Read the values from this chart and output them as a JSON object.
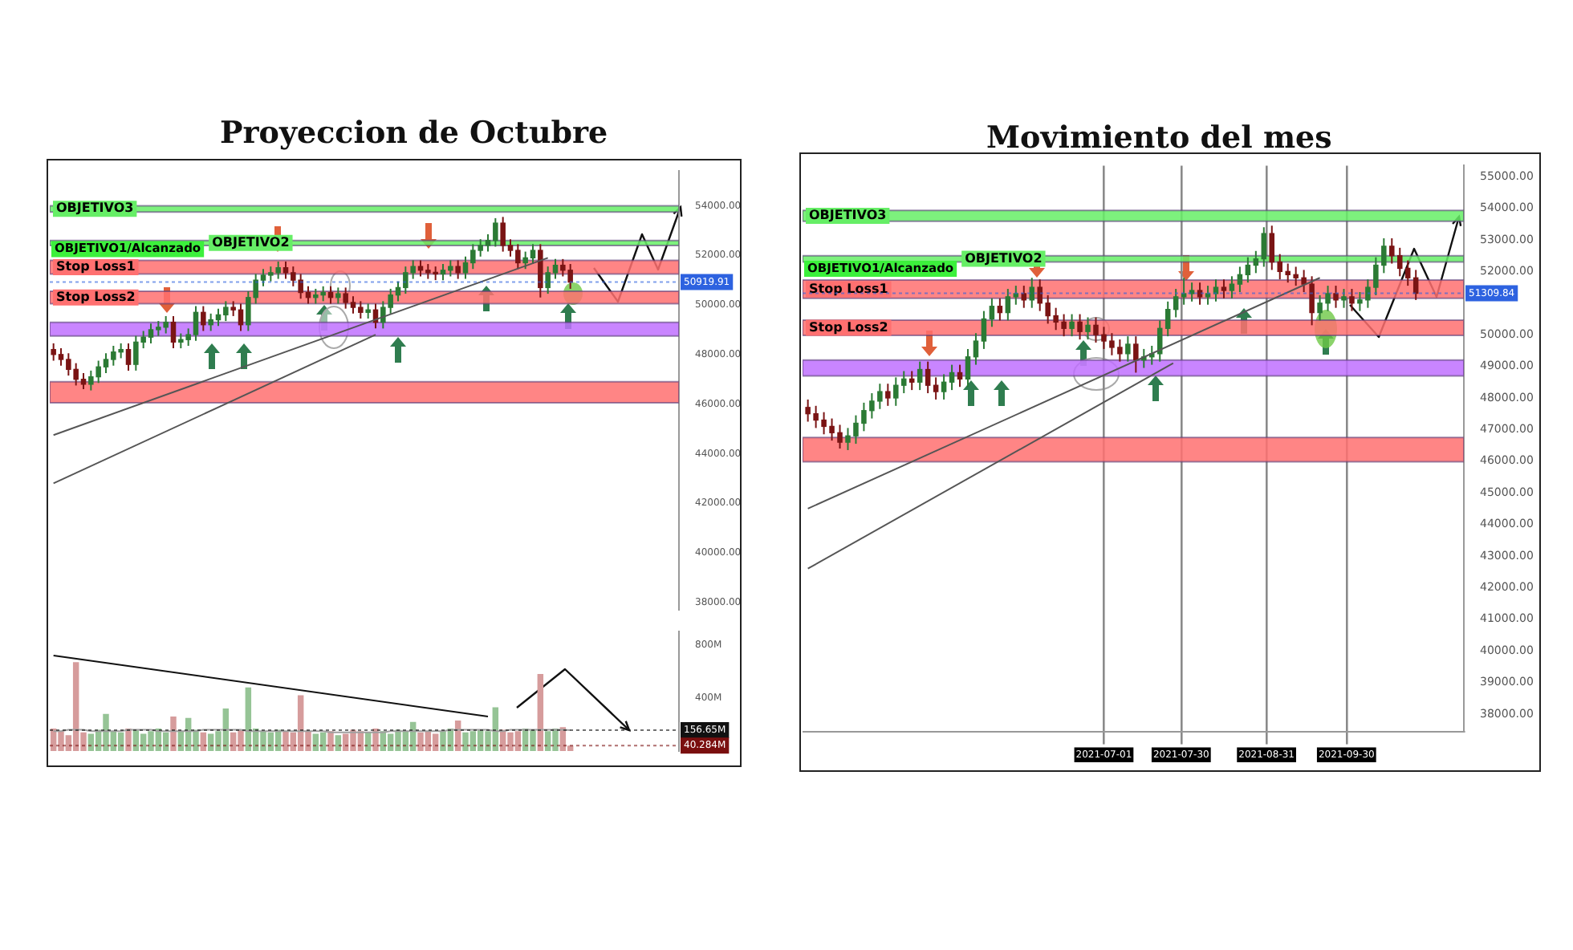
{
  "chart_data": [
    {
      "type": "candlestick",
      "title": "Proyeccion de Octubre",
      "categories": [
        null,
        null,
        null,
        null,
        null,
        null,
        null,
        null,
        null,
        null,
        null,
        null,
        null,
        null,
        null,
        null,
        null,
        null,
        null,
        null,
        null,
        null,
        null,
        null,
        null,
        null,
        null,
        null,
        null,
        null,
        null,
        null,
        null,
        null,
        null,
        null,
        null,
        null,
        null,
        null,
        null,
        null,
        null,
        null,
        null,
        null,
        null,
        null,
        null,
        null,
        null,
        null,
        null,
        null,
        null,
        null,
        null,
        null,
        null,
        null,
        null,
        null,
        null,
        null,
        null,
        null,
        null,
        null,
        null,
        null,
        null,
        null,
        null,
        null,
        null,
        null,
        null,
        null,
        null,
        null,
        null,
        null,
        null,
        null
      ],
      "ohlc": [
        [
          48200,
          48450,
          47750,
          48000
        ],
        [
          48000,
          48250,
          47550,
          47800
        ],
        [
          47800,
          48050,
          47150,
          47400
        ],
        [
          47400,
          47650,
          46750,
          47000
        ],
        [
          47000,
          47250,
          46600,
          46800
        ],
        [
          46800,
          47350,
          46550,
          47100
        ],
        [
          47100,
          47750,
          46850,
          47500
        ],
        [
          47500,
          48050,
          47250,
          47800
        ],
        [
          47800,
          48350,
          47550,
          48100
        ],
        [
          48100,
          48450,
          47850,
          48200
        ],
        [
          48200,
          48450,
          47350,
          47600
        ],
        [
          47600,
          48750,
          47350,
          48500
        ],
        [
          48500,
          48950,
          48250,
          48700
        ],
        [
          48700,
          49250,
          48450,
          49000
        ],
        [
          49000,
          49350,
          48750,
          49100
        ],
        [
          49100,
          49550,
          48850,
          49300
        ],
        [
          49300,
          49550,
          48250,
          48500
        ],
        [
          48500,
          48850,
          48250,
          48600
        ],
        [
          48600,
          49050,
          48350,
          48800
        ],
        [
          48800,
          49950,
          48550,
          49700
        ],
        [
          49700,
          49950,
          48950,
          49200
        ],
        [
          49200,
          49650,
          48950,
          49400
        ],
        [
          49400,
          49850,
          49150,
          49600
        ],
        [
          49600,
          50150,
          49350,
          49900
        ],
        [
          49900,
          50150,
          49550,
          49800
        ],
        [
          49800,
          50050,
          48950,
          49200
        ],
        [
          49200,
          50550,
          48950,
          50300
        ],
        [
          50300,
          51250,
          50050,
          51000
        ],
        [
          51000,
          51450,
          50750,
          51200
        ],
        [
          51200,
          51550,
          50950,
          51300
        ],
        [
          51300,
          51750,
          51050,
          51500
        ],
        [
          51500,
          51750,
          51050,
          51300
        ],
        [
          51300,
          51550,
          50750,
          51000
        ],
        [
          51000,
          51250,
          50250,
          50500
        ],
        [
          50500,
          50750,
          50050,
          50300
        ],
        [
          50300,
          50650,
          50050,
          50400
        ],
        [
          50400,
          50750,
          50150,
          50500
        ],
        [
          50500,
          50750,
          50050,
          50300
        ],
        [
          50300,
          50700,
          50050,
          50450
        ],
        [
          50450,
          50700,
          49850,
          50100
        ],
        [
          50100,
          50350,
          49650,
          49900
        ],
        [
          49900,
          50150,
          49450,
          49700
        ],
        [
          49700,
          50050,
          49450,
          49800
        ],
        [
          49800,
          50050,
          49050,
          49300
        ],
        [
          49300,
          50150,
          49050,
          49900
        ],
        [
          49900,
          50650,
          49650,
          50400
        ],
        [
          50400,
          50950,
          50150,
          50700
        ],
        [
          50700,
          51550,
          50450,
          51300
        ],
        [
          51300,
          51800,
          51050,
          51550
        ],
        [
          51550,
          51800,
          51150,
          51400
        ],
        [
          51400,
          51650,
          51050,
          51300
        ],
        [
          51300,
          51550,
          51000,
          51250
        ],
        [
          51250,
          51650,
          51000,
          51400
        ],
        [
          51400,
          51800,
          51150,
          51550
        ],
        [
          51550,
          51800,
          51050,
          51300
        ],
        [
          51300,
          51950,
          51050,
          51700
        ],
        [
          51700,
          52450,
          51450,
          52200
        ],
        [
          52200,
          52650,
          51950,
          52400
        ],
        [
          52400,
          52850,
          52150,
          52600
        ],
        [
          52600,
          53500,
          52350,
          53300
        ],
        [
          53300,
          53550,
          52150,
          52400
        ],
        [
          52400,
          52650,
          51950,
          52200
        ],
        [
          52200,
          52450,
          51450,
          51700
        ],
        [
          51700,
          52150,
          51450,
          51900
        ],
        [
          51900,
          52450,
          51650,
          52200
        ],
        [
          52200,
          52450,
          50300,
          50700
        ],
        [
          50700,
          51550,
          50450,
          51300
        ],
        [
          51300,
          51850,
          51050,
          51600
        ],
        [
          51600,
          51850,
          51150,
          51400
        ],
        [
          51400,
          51650,
          50650,
          50919.91
        ],
        null,
        null,
        null,
        null,
        null,
        null,
        null,
        null,
        null,
        null,
        null,
        null,
        null,
        null
      ],
      "colors": [
        "#7a1414",
        "#7a1414",
        "#7a1414",
        "#7a1414",
        "#7a1414",
        "#2b7a34",
        "#2b7a34",
        "#2b7a34",
        "#2b7a34",
        "#2b7a34",
        "#7a1414",
        "#2b7a34",
        "#2b7a34",
        "#2b7a34",
        "#2b7a34",
        "#2b7a34",
        "#7a1414",
        "#2b7a34",
        "#2b7a34",
        "#2b7a34",
        "#7a1414",
        "#2b7a34",
        "#2b7a34",
        "#2b7a34",
        "#7a1414",
        "#7a1414",
        "#2b7a34",
        "#2b7a34",
        "#2b7a34",
        "#2b7a34",
        "#2b7a34",
        "#7a1414",
        "#7a1414",
        "#7a1414",
        "#7a1414",
        "#2b7a34",
        "#2b7a34",
        "#7a1414",
        "#2b7a34",
        "#7a1414",
        "#7a1414",
        "#7a1414",
        "#2b7a34",
        "#7a1414",
        "#2b7a34",
        "#2b7a34",
        "#2b7a34",
        "#2b7a34",
        "#2b7a34",
        "#7a1414",
        "#7a1414",
        "#7a1414",
        "#2b7a34",
        "#2b7a34",
        "#7a1414",
        "#2b7a34",
        "#2b7a34",
        "#2b7a34",
        "#2b7a34",
        "#2b7a34",
        "#7a1414",
        "#7a1414",
        "#7a1414",
        "#2b7a34",
        "#2b7a34",
        "#7a1414",
        "#2b7a34",
        "#2b7a34",
        "#7a1414",
        "#7a1414",
        null,
        null,
        null,
        null,
        null,
        null,
        null,
        null,
        null,
        null,
        null,
        null,
        null,
        null
      ],
      "series": [
        {
          "type": "line",
          "color": "#555555",
          "values": [
            44750,
            null,
            null,
            null,
            null,
            null,
            null,
            null,
            null,
            null,
            null,
            null,
            null,
            null,
            null,
            null,
            null,
            null,
            null,
            null,
            null,
            null,
            null,
            null,
            null,
            null,
            null,
            null,
            null,
            null,
            null,
            null,
            null,
            null,
            null,
            null,
            null,
            null,
            null,
            null,
            null,
            null,
            null,
            null,
            null,
            null,
            null,
            null,
            null,
            null,
            null,
            null,
            null,
            null,
            null,
            null,
            null,
            null,
            null,
            null,
            null,
            null,
            null,
            null,
            null,
            null,
            51900,
            null,
            null,
            null,
            null,
            null,
            null,
            null,
            null,
            null,
            null,
            null,
            null,
            null,
            null,
            null,
            null,
            null
          ]
        },
        {
          "type": "line",
          "color": "#555555",
          "values": [
            42800,
            null,
            null,
            null,
            null,
            null,
            null,
            null,
            null,
            null,
            null,
            null,
            null,
            null,
            null,
            null,
            null,
            null,
            null,
            null,
            null,
            null,
            null,
            null,
            null,
            null,
            null,
            null,
            null,
            null,
            null,
            null,
            null,
            null,
            null,
            null,
            null,
            null,
            null,
            null,
            null,
            null,
            null,
            48800,
            null,
            null,
            null,
            null,
            null,
            null,
            null,
            null,
            null,
            null,
            null,
            null,
            null,
            null,
            null,
            null,
            null,
            null,
            null,
            null,
            null,
            null,
            null,
            null,
            null,
            null,
            null,
            null,
            null,
            null,
            null,
            null,
            null,
            null,
            null,
            null,
            null,
            null,
            null,
            null
          ]
        }
      ],
      "ylim": [
        37700,
        55400
      ],
      "yticks": [
        {
          "value": 38000,
          "label": "38000.00"
        },
        {
          "value": 40000,
          "label": "40000.00"
        },
        {
          "value": 42000,
          "label": "42000.00"
        },
        {
          "value": 44000,
          "label": "44000.00"
        },
        {
          "value": 46000,
          "label": "46000.00"
        },
        {
          "value": 48000,
          "label": "48000.00"
        },
        {
          "value": 50000,
          "label": "50000.00"
        },
        {
          "value": 52000,
          "label": "52000.00"
        },
        {
          "value": 54000,
          "label": "54000.00"
        }
      ],
      "bands": [
        {
          "axis": "y",
          "from": 51250,
          "to": 51800,
          "label": "Stop Loss1",
          "color": "#ff7070"
        },
        {
          "axis": "y",
          "from": 50050,
          "to": 50550,
          "label": "Stop Loss2",
          "color": "#ff7070"
        },
        {
          "axis": "y",
          "from": 52400,
          "to": 52600,
          "label": "OBJETIVO2",
          "color": "#66ee66"
        },
        {
          "axis": "y",
          "from": 53750,
          "to": 54000,
          "label": "OBJETIVO3",
          "color": "#66ee66"
        },
        {
          "axis": "y",
          "from": 48750,
          "to": 49300,
          "color": "#c070ff"
        },
        {
          "axis": "y",
          "from": 46050,
          "to": 46900,
          "color": "#ff7070"
        }
      ],
      "ref_lines": [
        {
          "axis": "y",
          "value": 50919.91,
          "label": "50919.91",
          "color": "#2d62e0"
        }
      ],
      "annotations": [
        "OBJETIVO1/Alcanzado"
      ],
      "grid": false,
      "legend": false
    },
    {
      "type": "bar",
      "categories": [
        null,
        null,
        null,
        null,
        null,
        null,
        null,
        null,
        null,
        null,
        null,
        null,
        null,
        null,
        null,
        null,
        null,
        null,
        null,
        null,
        null,
        null,
        null,
        null,
        null,
        null,
        null,
        null,
        null,
        null,
        null,
        null,
        null,
        null,
        null,
        null,
        null,
        null,
        null,
        null,
        null,
        null,
        null,
        null,
        null,
        null,
        null,
        null,
        null,
        null,
        null,
        null,
        null,
        null,
        null,
        null,
        null,
        null,
        null,
        null,
        null,
        null,
        null,
        null,
        null,
        null,
        null,
        null,
        null,
        null,
        null,
        null,
        null,
        null,
        null,
        null,
        null,
        null,
        null,
        null,
        null,
        null,
        null,
        null
      ],
      "values": [
        170,
        150,
        120,
        670,
        140,
        130,
        160,
        280,
        150,
        140,
        170,
        160,
        130,
        150,
        170,
        140,
        260,
        150,
        250,
        160,
        140,
        130,
        150,
        320,
        140,
        160,
        480,
        170,
        150,
        140,
        160,
        150,
        140,
        420,
        150,
        130,
        140,
        150,
        120,
        130,
        160,
        150,
        140,
        170,
        150,
        130,
        160,
        150,
        220,
        140,
        150,
        130,
        150,
        170,
        230,
        140,
        150,
        160,
        150,
        330,
        160,
        140,
        150,
        170,
        160,
        580,
        150,
        170,
        180,
        40.284,
        null,
        null,
        null,
        null,
        null,
        null,
        null,
        null,
        null,
        null,
        null,
        null,
        null,
        null
      ],
      "colors": [
        "#d69c9c",
        "#d69c9c",
        "#d69c9c",
        "#d69c9c",
        "#d69c9c",
        "#96c496",
        "#96c496",
        "#96c496",
        "#96c496",
        "#96c496",
        "#d69c9c",
        "#96c496",
        "#96c496",
        "#96c496",
        "#96c496",
        "#96c496",
        "#d69c9c",
        "#96c496",
        "#96c496",
        "#96c496",
        "#d69c9c",
        "#96c496",
        "#96c496",
        "#96c496",
        "#d69c9c",
        "#d69c9c",
        "#96c496",
        "#96c496",
        "#96c496",
        "#96c496",
        "#96c496",
        "#d69c9c",
        "#d69c9c",
        "#d69c9c",
        "#d69c9c",
        "#96c496",
        "#96c496",
        "#d69c9c",
        "#96c496",
        "#d69c9c",
        "#d69c9c",
        "#d69c9c",
        "#96c496",
        "#d69c9c",
        "#96c496",
        "#96c496",
        "#96c496",
        "#96c496",
        "#96c496",
        "#d69c9c",
        "#d69c9c",
        "#d69c9c",
        "#96c496",
        "#96c496",
        "#d69c9c",
        "#96c496",
        "#96c496",
        "#96c496",
        "#96c496",
        "#96c496",
        "#d69c9c",
        "#d69c9c",
        "#d69c9c",
        "#96c496",
        "#96c496",
        "#d69c9c",
        "#96c496",
        "#96c496",
        "#d69c9c",
        "#d69c9c",
        null,
        null,
        null,
        null,
        null,
        null,
        null,
        null,
        null,
        null,
        null,
        null,
        null,
        null
      ],
      "series": [
        {
          "type": "line",
          "color": "#111111",
          "values": [
            720,
            null,
            null,
            null,
            null,
            null,
            null,
            null,
            null,
            null,
            null,
            null,
            null,
            null,
            null,
            null,
            null,
            null,
            null,
            null,
            null,
            null,
            null,
            null,
            null,
            null,
            null,
            null,
            null,
            null,
            null,
            null,
            null,
            null,
            null,
            null,
            null,
            null,
            null,
            null,
            null,
            null,
            null,
            null,
            null,
            null,
            null,
            null,
            null,
            null,
            null,
            null,
            null,
            null,
            null,
            null,
            null,
            null,
            260,
            null,
            null,
            null,
            null,
            null,
            null,
            null,
            null,
            null,
            null,
            null,
            null,
            null,
            null,
            null,
            null,
            null,
            null,
            null,
            null,
            null,
            null,
            null,
            null,
            null
          ]
        },
        {
          "type": "line",
          "color": "#a0a0a0",
          "values": [
            150,
            150,
            160,
            160,
            160,
            150,
            150,
            150,
            150,
            150,
            160,
            160,
            160,
            160,
            150,
            150,
            150,
            150,
            150,
            150,
            160,
            160,
            160,
            160,
            160,
            160,
            150,
            150,
            150,
            150,
            150,
            150,
            150,
            150,
            150,
            150,
            150,
            140,
            140,
            140,
            140,
            140,
            140,
            140,
            140,
            150,
            150,
            150,
            150,
            150,
            150,
            150,
            150,
            160,
            160,
            160,
            160,
            160,
            160,
            150,
            150,
            160,
            160,
            160,
            160,
            160,
            160,
            160,
            160,
            156.65,
            null,
            null,
            null,
            null,
            null,
            null,
            null,
            null,
            null,
            null,
            null,
            null,
            null,
            null
          ]
        }
      ],
      "ylim": [
        0,
        900
      ],
      "yticks": [
        {
          "value": 400,
          "label": "400M"
        },
        {
          "value": 800,
          "label": "800M"
        }
      ],
      "ref_lines": [
        {
          "axis": "y",
          "value": 156.65,
          "label": "156.65M",
          "color": "#111111"
        },
        {
          "axis": "y",
          "value": 40.284,
          "label": "40.284M",
          "color": "#7a0f0f"
        }
      ],
      "grid": false,
      "legend": false
    },
    {
      "type": "candlestick",
      "title": "Movimiento del mes",
      "x": [
        "2021-03-12",
        "2021-03-15",
        "2021-03-18",
        "2021-03-21",
        "2021-03-24",
        "2021-03-27",
        "2021-03-30",
        "2021-04-02",
        "2021-04-05",
        "2021-04-08",
        "2021-04-11",
        "2021-04-14",
        "2021-04-17",
        "2021-04-20",
        "2021-04-23",
        "2021-04-26",
        "2021-04-29",
        "2021-05-02",
        "2021-05-05",
        "2021-05-08",
        "2021-05-11",
        "2021-05-14",
        "2021-05-17",
        "2021-05-20",
        "2021-05-23",
        "2021-05-26",
        "2021-05-29",
        "2021-06-01",
        "2021-06-04",
        "2021-06-07",
        "2021-06-10",
        "2021-06-13",
        "2021-06-16",
        "2021-06-19",
        "2021-06-22",
        "2021-06-25",
        "2021-06-28",
        "2021-07-01",
        "2021-07-04",
        "2021-07-07",
        "2021-07-10",
        "2021-07-13",
        "2021-07-16",
        "2021-07-19",
        "2021-07-22",
        "2021-07-25",
        "2021-07-28",
        "2021-07-31",
        "2021-08-03",
        "2021-08-06",
        "2021-08-09",
        "2021-08-12",
        "2021-08-15",
        "2021-08-18",
        "2021-08-21",
        "2021-08-24",
        "2021-08-27",
        "2021-08-30",
        "2021-09-02",
        "2021-09-05",
        "2021-09-08",
        "2021-09-11",
        "2021-09-14",
        "2021-09-17",
        "2021-09-20",
        "2021-09-23",
        "2021-09-26",
        "2021-09-29",
        "2021-10-02",
        "2021-10-05",
        "2021-10-08",
        "2021-10-11",
        "2021-10-14",
        "2021-10-17",
        "2021-10-20",
        "2021-10-23",
        "2021-10-26"
      ],
      "ohlc": [
        [
          47700,
          47950,
          47250,
          47500
        ],
        [
          47500,
          47750,
          47050,
          47300
        ],
        [
          47300,
          47550,
          46850,
          47100
        ],
        [
          47100,
          47350,
          46650,
          46900
        ],
        [
          46900,
          47150,
          46400,
          46600
        ],
        [
          46600,
          47050,
          46350,
          46800
        ],
        [
          46800,
          47450,
          46550,
          47200
        ],
        [
          47200,
          47850,
          46950,
          47600
        ],
        [
          47600,
          48150,
          47350,
          47900
        ],
        [
          47900,
          48450,
          47650,
          48200
        ],
        [
          48200,
          48450,
          47750,
          48000
        ],
        [
          48000,
          48650,
          47750,
          48400
        ],
        [
          48400,
          48850,
          48150,
          48600
        ],
        [
          48600,
          48850,
          48250,
          48500
        ],
        [
          48500,
          49150,
          48250,
          48900
        ],
        [
          48900,
          49150,
          48150,
          48400
        ],
        [
          48400,
          48650,
          47950,
          48200
        ],
        [
          48200,
          48750,
          47950,
          48500
        ],
        [
          48500,
          49050,
          48250,
          48800
        ],
        [
          48800,
          49050,
          48350,
          48600
        ],
        [
          48600,
          49550,
          48350,
          49300
        ],
        [
          49300,
          50050,
          49050,
          49800
        ],
        [
          49800,
          50750,
          49550,
          50500
        ],
        [
          50500,
          51150,
          50250,
          50900
        ],
        [
          50900,
          51150,
          50450,
          50700
        ],
        [
          50700,
          51450,
          50450,
          51200
        ],
        [
          51200,
          51550,
          50950,
          51300
        ],
        [
          51300,
          51550,
          50850,
          51100
        ],
        [
          51100,
          51800,
          50850,
          51500
        ],
        [
          51500,
          51750,
          50750,
          51000
        ],
        [
          51000,
          51250,
          50350,
          50600
        ],
        [
          50600,
          50850,
          50150,
          50400
        ],
        [
          50400,
          50650,
          49950,
          50200
        ],
        [
          50200,
          50650,
          49950,
          50400
        ],
        [
          50400,
          50650,
          49850,
          50100
        ],
        [
          50100,
          50550,
          49850,
          50300
        ],
        [
          50300,
          50550,
          49750,
          50000
        ],
        [
          50000,
          50250,
          49550,
          49800
        ],
        [
          49800,
          50050,
          49350,
          49600
        ],
        [
          49600,
          49850,
          49150,
          49400
        ],
        [
          49400,
          49950,
          49150,
          49700
        ],
        [
          49700,
          49950,
          48800,
          49200
        ],
        [
          49200,
          49550,
          48950,
          49300
        ],
        [
          49300,
          49650,
          49050,
          49400
        ],
        [
          49400,
          50450,
          49150,
          50200
        ],
        [
          50200,
          51050,
          49950,
          50800
        ],
        [
          50800,
          51450,
          50550,
          51200
        ],
        [
          51200,
          51800,
          50950,
          51300
        ],
        [
          51300,
          51650,
          51050,
          51400
        ],
        [
          51400,
          51650,
          50950,
          51200
        ],
        [
          51200,
          51550,
          50950,
          51300
        ],
        [
          51300,
          51750,
          51050,
          51500
        ],
        [
          51500,
          51750,
          51150,
          51400
        ],
        [
          51400,
          51850,
          51150,
          51600
        ],
        [
          51600,
          52150,
          51350,
          51900
        ],
        [
          51900,
          52450,
          51650,
          52200
        ],
        [
          52200,
          52650,
          51950,
          52400
        ],
        [
          52400,
          53400,
          52150,
          53200
        ],
        [
          53200,
          53450,
          52050,
          52300
        ],
        [
          52300,
          52550,
          51750,
          52000
        ],
        [
          52000,
          52250,
          51650,
          51900
        ],
        [
          51900,
          52150,
          51550,
          51800
        ],
        [
          51800,
          52050,
          51350,
          51600
        ],
        [
          51600,
          51850,
          50300,
          50700
        ],
        [
          50700,
          51250,
          50450,
          51000
        ],
        [
          51000,
          51550,
          50750,
          51300
        ],
        [
          51300,
          51550,
          50850,
          51100
        ],
        [
          51100,
          51450,
          50850,
          51200
        ],
        [
          51200,
          51450,
          50750,
          51000
        ],
        [
          51000,
          51350,
          50750,
          51100
        ],
        [
          51100,
          51750,
          50850,
          51500
        ],
        [
          51500,
          52450,
          51250,
          52200
        ],
        [
          52200,
          53050,
          51950,
          52800
        ],
        [
          52800,
          53050,
          52250,
          52500
        ],
        [
          52500,
          52750,
          51850,
          52100
        ],
        [
          52100,
          52350,
          51550,
          51800
        ],
        [
          51800,
          52050,
          51100,
          51309.84
        ]
      ],
      "colors": [
        "#7a1414",
        "#7a1414",
        "#7a1414",
        "#7a1414",
        "#7a1414",
        "#2b7a34",
        "#2b7a34",
        "#2b7a34",
        "#2b7a34",
        "#2b7a34",
        "#7a1414",
        "#2b7a34",
        "#2b7a34",
        "#7a1414",
        "#2b7a34",
        "#7a1414",
        "#7a1414",
        "#2b7a34",
        "#2b7a34",
        "#7a1414",
        "#2b7a34",
        "#2b7a34",
        "#2b7a34",
        "#2b7a34",
        "#7a1414",
        "#2b7a34",
        "#2b7a34",
        "#7a1414",
        "#2b7a34",
        "#7a1414",
        "#7a1414",
        "#7a1414",
        "#7a1414",
        "#2b7a34",
        "#7a1414",
        "#2b7a34",
        "#7a1414",
        "#7a1414",
        "#7a1414",
        "#7a1414",
        "#2b7a34",
        "#7a1414",
        "#2b7a34",
        "#2b7a34",
        "#2b7a34",
        "#2b7a34",
        "#2b7a34",
        "#2b7a34",
        "#2b7a34",
        "#7a1414",
        "#2b7a34",
        "#2b7a34",
        "#7a1414",
        "#2b7a34",
        "#2b7a34",
        "#2b7a34",
        "#2b7a34",
        "#2b7a34",
        "#7a1414",
        "#7a1414",
        "#7a1414",
        "#7a1414",
        "#7a1414",
        "#7a1414",
        "#2b7a34",
        "#2b7a34",
        "#7a1414",
        "#2b7a34",
        "#7a1414",
        "#2b7a34",
        "#2b7a34",
        "#2b7a34",
        "#2b7a34",
        "#7a1414",
        "#7a1414",
        "#7a1414",
        "#7a1414"
      ],
      "series": [
        {
          "type": "line",
          "color": "#555555",
          "x": [
            "2021-03-12",
            "2021-09-20"
          ],
          "values": [
            44500,
            51800
          ]
        },
        {
          "type": "line",
          "color": "#555555",
          "x": [
            "2021-03-12",
            "2021-07-27"
          ],
          "values": [
            42600,
            49100
          ]
        }
      ],
      "xlim": [
        "2021-03-10",
        "2021-11-13"
      ],
      "xticks": [
        "2021-07-01",
        "2021-07-30",
        "2021-08-31",
        "2021-09-30"
      ],
      "ylim": [
        37450,
        55350
      ],
      "yticks": [
        {
          "value": 38000,
          "label": "38000.00"
        },
        {
          "value": 39000,
          "label": "39000.00"
        },
        {
          "value": 40000,
          "label": "40000.00"
        },
        {
          "value": 41000,
          "label": "41000.00"
        },
        {
          "value": 42000,
          "label": "42000.00"
        },
        {
          "value": 43000,
          "label": "43000.00"
        },
        {
          "value": 44000,
          "label": "44000.00"
        },
        {
          "value": 45000,
          "label": "45000.00"
        },
        {
          "value": 46000,
          "label": "46000.00"
        },
        {
          "value": 47000,
          "label": "47000.00"
        },
        {
          "value": 48000,
          "label": "48000.00"
        },
        {
          "value": 49000,
          "label": "49000.00"
        },
        {
          "value": 50000,
          "label": "50000.00"
        },
        {
          "value": 52000,
          "label": "52000.00"
        },
        {
          "value": 53000,
          "label": "53000.00"
        },
        {
          "value": 54000,
          "label": "54000.00"
        },
        {
          "value": 55000,
          "label": "55000.00"
        }
      ],
      "bands": [
        {
          "axis": "y",
          "from": 51150,
          "to": 51730,
          "label": "Stop Loss1",
          "color": "#ff7070"
        },
        {
          "axis": "y",
          "from": 49980,
          "to": 50460,
          "label": "Stop Loss2",
          "color": "#ff7070"
        },
        {
          "axis": "y",
          "from": 52300,
          "to": 52500,
          "label": "OBJETIVO2",
          "color": "#66ee66"
        },
        {
          "axis": "y",
          "from": 53590,
          "to": 53930,
          "label": "OBJETIVO3",
          "color": "#66ee66"
        },
        {
          "axis": "y",
          "from": 48700,
          "to": 49200,
          "color": "#c070ff"
        },
        {
          "axis": "y",
          "from": 45980,
          "to": 46750,
          "color": "#ff7070"
        }
      ],
      "ref_lines": [
        {
          "axis": "y",
          "value": 51309.84,
          "label": "51309.84",
          "color": "#2d62e0"
        }
      ],
      "annotations": [
        "OBJETIVO1/Alcanzado"
      ],
      "grid": "x",
      "legend": false
    }
  ]
}
